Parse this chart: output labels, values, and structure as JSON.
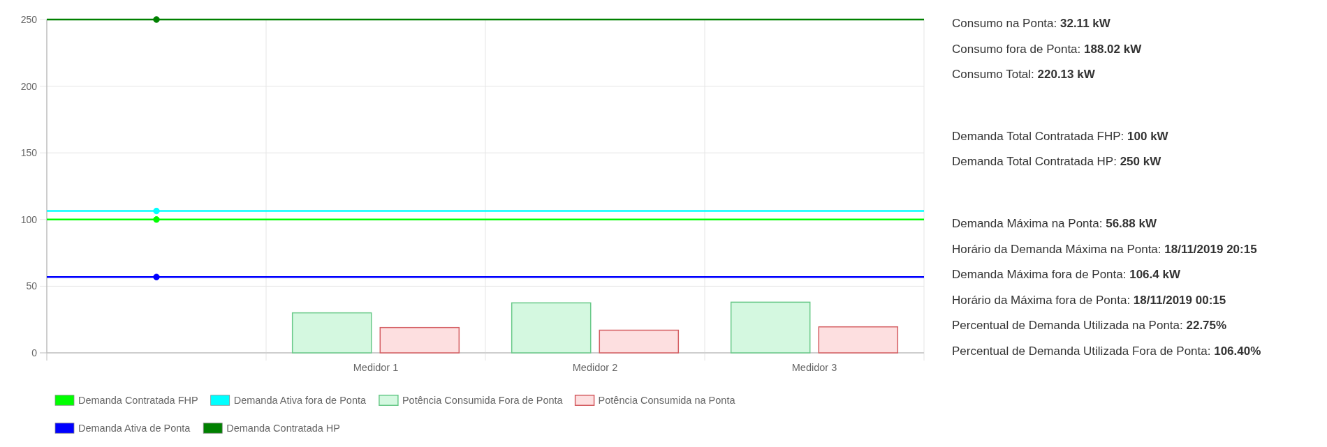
{
  "chart_data": [
    {
      "type": "bar",
      "categories": [
        null,
        "Medidor 1",
        "Medidor 2",
        "Medidor 3"
      ],
      "ylim": [
        0,
        250
      ],
      "yticks": [
        0,
        50,
        100,
        150,
        200,
        250
      ],
      "grid": true,
      "legend": "bottom",
      "marker": "circle",
      "series": [
        {
          "name": "Demanda Contratada FHP",
          "type": "line",
          "color": "#00ff00",
          "values": [
            100,
            null,
            null,
            null
          ]
        },
        {
          "name": "Demanda Ativa fora de Ponta",
          "type": "line",
          "color": "#00ffff",
          "values": [
            106.4,
            null,
            null,
            null
          ]
        },
        {
          "name": "Potência Consumida Fora de Ponta",
          "type": "bar",
          "color": "#d4f8e0",
          "values": [
            null,
            30,
            37.5,
            38
          ]
        },
        {
          "name": "Potência Consumida na Ponta",
          "type": "bar",
          "color": "#fddfe0",
          "values": [
            null,
            19,
            17,
            19.5
          ]
        },
        {
          "name": "Demanda Ativa de Ponta",
          "type": "line",
          "color": "#0000ff",
          "values": [
            56.88,
            null,
            null,
            null
          ]
        },
        {
          "name": "Demanda Contratada HP",
          "type": "line",
          "color": "#008000",
          "values": [
            250,
            null,
            null,
            null
          ]
        }
      ],
      "ref_lines": [
        {
          "axis": "y",
          "value": 100,
          "color": "#00ff00"
        },
        {
          "axis": "y",
          "value": 106.4,
          "color": "#00ffff"
        },
        {
          "axis": "y",
          "value": 56.88,
          "color": "#0000ff"
        },
        {
          "axis": "y",
          "value": 250,
          "color": "#008000"
        }
      ]
    },
    {
      "type": "other",
      "annotations": [
        "Consumo na Ponta: 32.11 kW",
        "Consumo fora de Ponta: 188.02 kW",
        "Consumo Total: 220.13 kW",
        "Demanda Total Contratada FHP: 100 kW",
        "Demanda Total Contratada HP: 250 kW",
        "Demanda Máxima na Ponta: 56.88 kW",
        "Horário da Demanda Máxima na Ponta: 18/11/2019 20:15",
        "Demanda Máxima fora de Ponta: 106.4 kW",
        "Horário da Máxima fora de Ponta: 18/11/2019 00:15",
        "Percentual de Demanda Utilizada na Ponta: 22.75%",
        "Percentual de Demanda Utilizada Fora de Ponta: 106.40%"
      ]
    }
  ]
}
